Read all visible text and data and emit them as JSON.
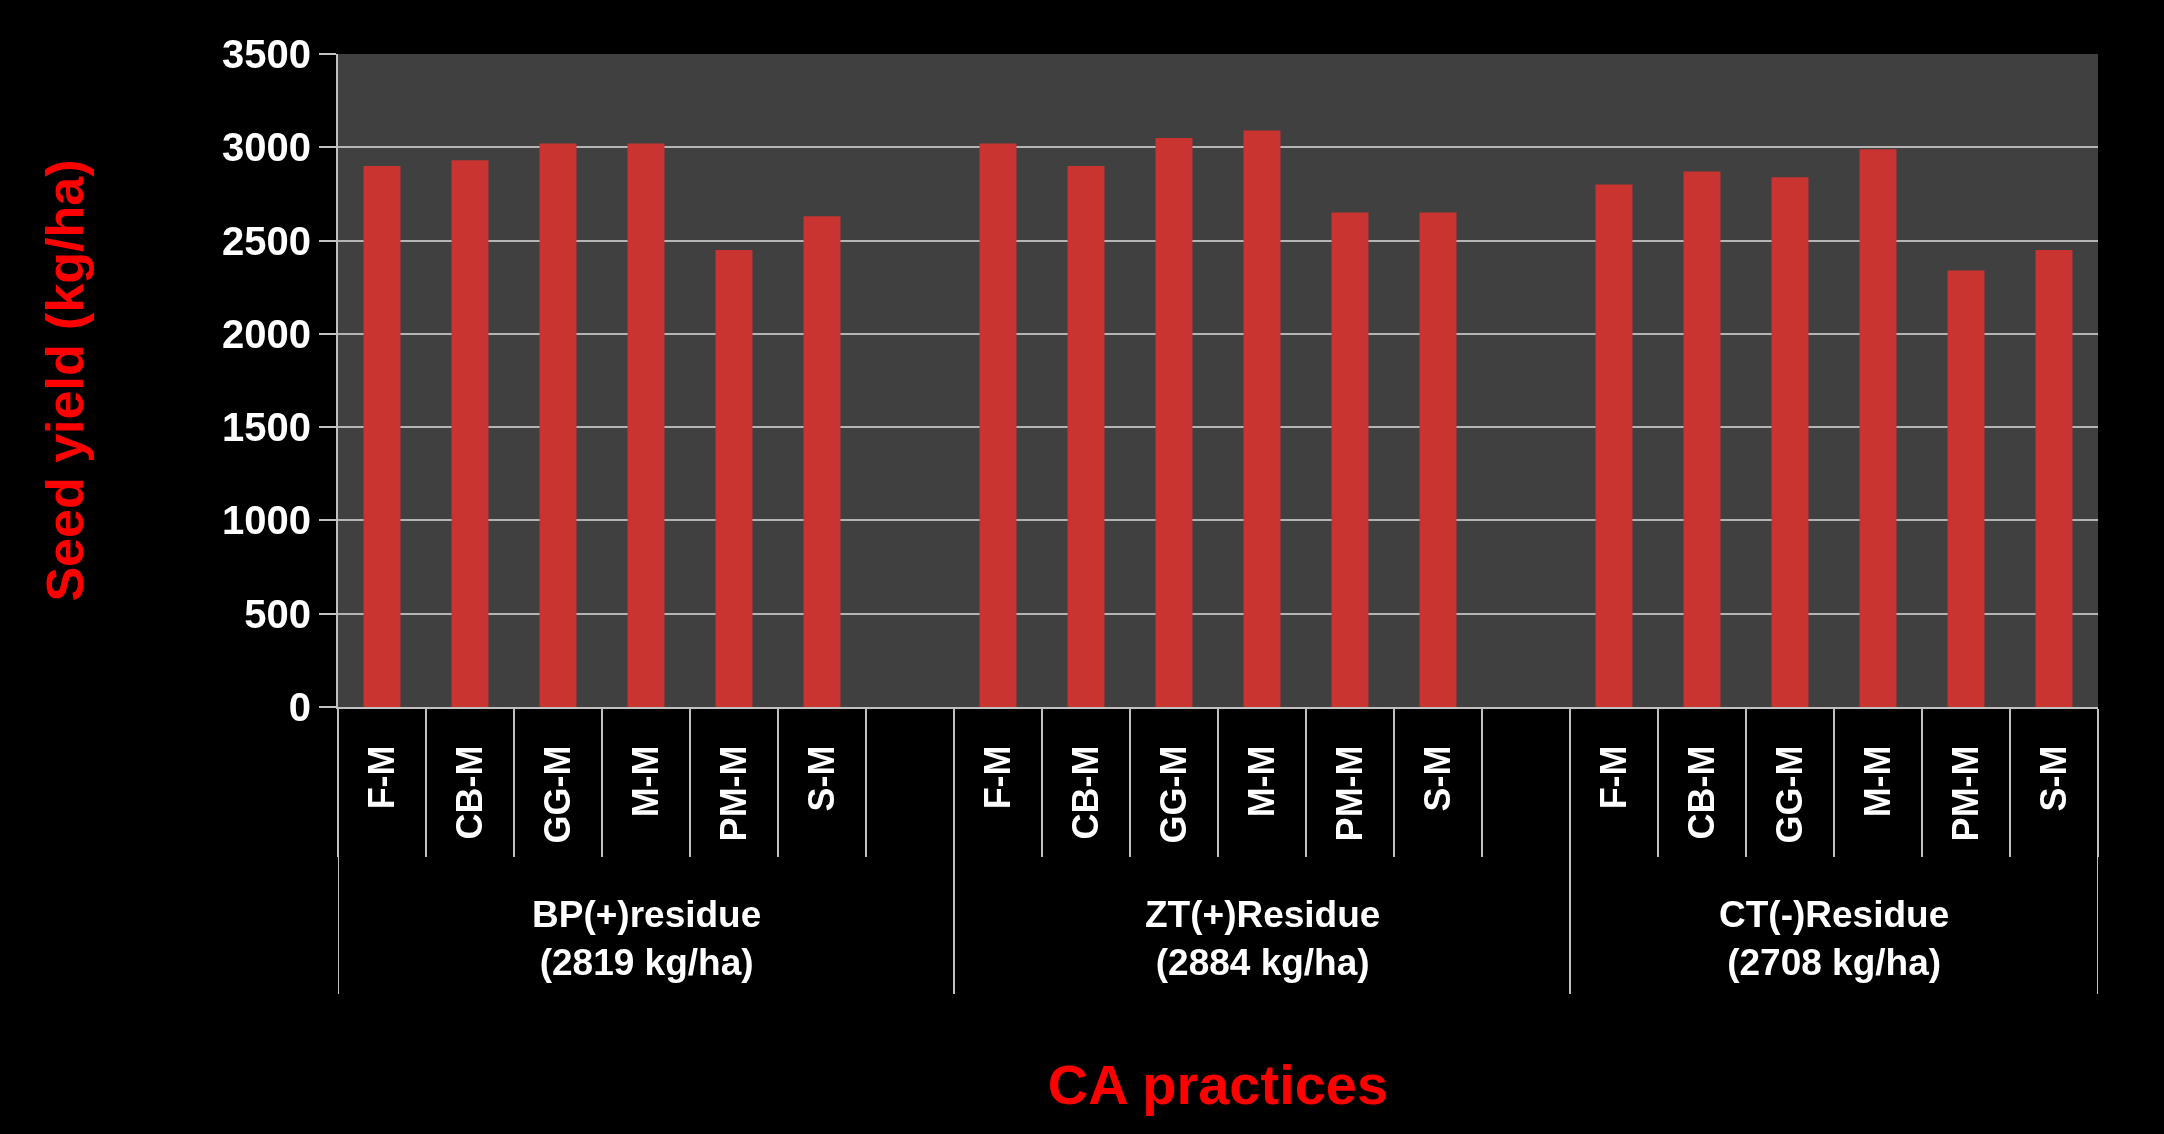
{
  "chart_data": {
    "type": "bar",
    "xlabel": "CA practices",
    "ylabel": "Seed yield (kg/ha)",
    "categories": [
      "F-M",
      "CB-M",
      "GG-M",
      "M-M",
      "PM-M",
      "S-M",
      null,
      "F-M",
      "CB-M",
      "GG-M",
      "M-M",
      "PM-M",
      "S-M",
      null,
      "F-M",
      "CB-M",
      "GG-M",
      "M-M",
      "PM-M",
      "S-M"
    ],
    "values": [
      2900,
      2930,
      3020,
      3020,
      2450,
      2630,
      null,
      3020,
      2900,
      3050,
      3090,
      2650,
      2650,
      null,
      2800,
      2870,
      2840,
      2990,
      2340,
      2450
    ],
    "color": "#c93431",
    "ylim": [
      0,
      3500
    ],
    "yticks": [
      0,
      500,
      1000,
      1500,
      2000,
      2500,
      3000,
      3500
    ],
    "grid": "y",
    "annotations": [
      "BP(+)residue\n(2819 kg/ha)",
      "ZT(+)Residue\n(2884 kg/ha)",
      "CT(-)Residue\n(2708 kg/ha)"
    ]
  }
}
